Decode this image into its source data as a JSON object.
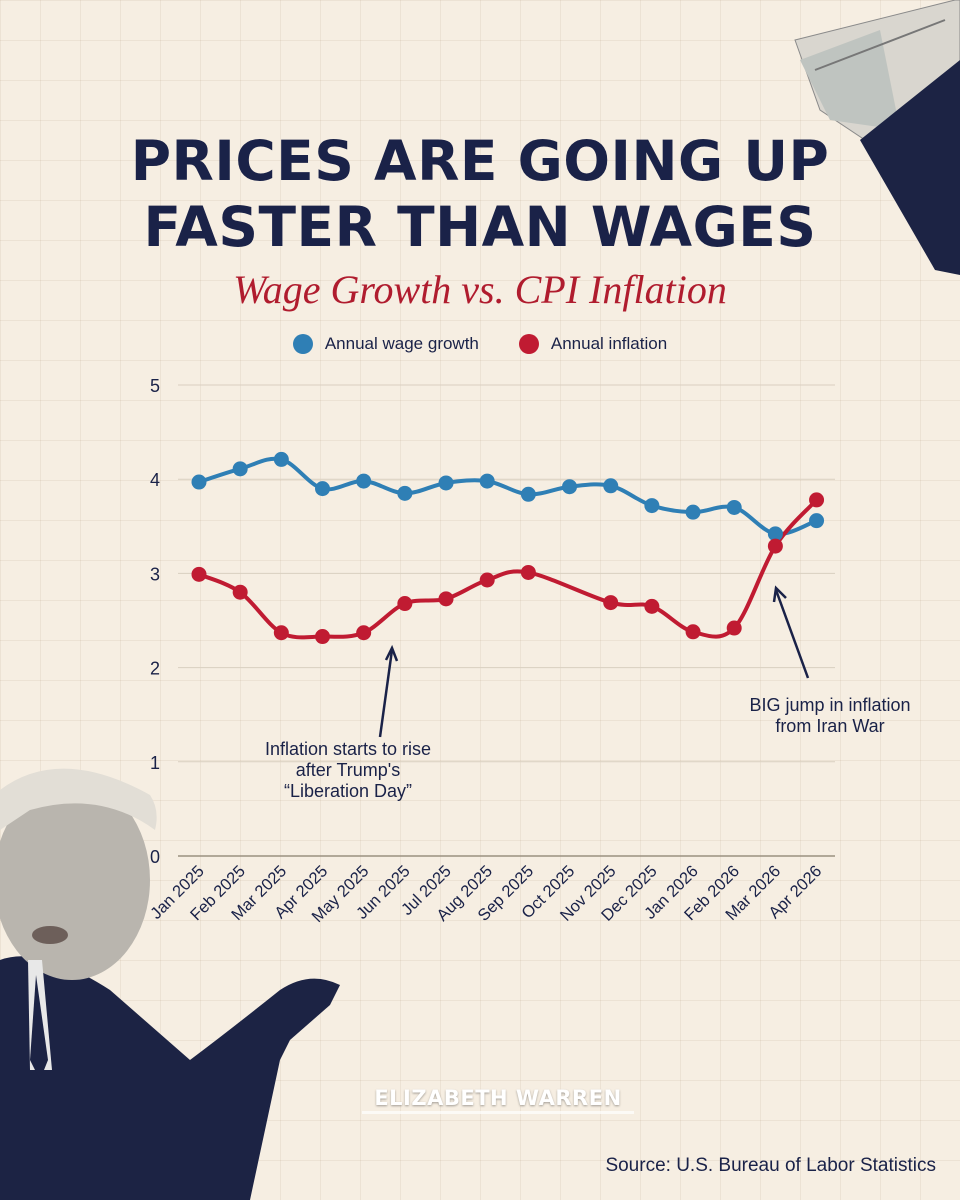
{
  "title_lines": [
    "PRICES ARE GOING UP",
    "FASTER THAN WAGES"
  ],
  "subtitle": "Wage Growth vs. CPI Inflation",
  "legend": [
    {
      "label": "Annual wage growth",
      "color": "#2f7fb5"
    },
    {
      "label": "Annual inflation",
      "color": "#c01b32"
    }
  ],
  "chart_data": {
    "type": "line",
    "title": "Wage Growth vs. CPI Inflation",
    "categories": [
      "Jan 2025",
      "Feb 2025",
      "Mar 2025",
      "Apr 2025",
      "May 2025",
      "Jun 2025",
      "Jul 2025",
      "Aug 2025",
      "Sep 2025",
      "Oct 2025",
      "Nov 2025",
      "Dec 2025",
      "Jan 2026",
      "Feb 2026",
      "Mar 2026",
      "Apr 2026"
    ],
    "series": [
      {
        "name": "Annual wage growth",
        "color": "#2f7fb5",
        "values": [
          3.97,
          4.11,
          4.21,
          3.9,
          3.98,
          3.85,
          3.96,
          3.98,
          3.84,
          3.92,
          3.93,
          3.72,
          3.65,
          3.7,
          3.42,
          3.56
        ]
      },
      {
        "name": "Annual inflation",
        "color": "#c01b32",
        "values": [
          2.99,
          2.8,
          2.37,
          2.33,
          2.37,
          2.68,
          2.73,
          2.93,
          3.01,
          null,
          2.69,
          2.65,
          2.38,
          2.42,
          3.29,
          3.78
        ]
      }
    ],
    "yticks": [
      0,
      1,
      2,
      3,
      4,
      5
    ],
    "ylim": [
      0,
      5
    ],
    "grid": true,
    "legend_position": "top-center"
  },
  "annotations": [
    {
      "lines": [
        "Inflation starts to rise",
        "after Trump's",
        "“Liberation Day”"
      ]
    },
    {
      "lines": [
        "BIG jump in inflation",
        "from Iran War"
      ]
    }
  ],
  "logo": "ELIZABETH WARREN",
  "source": "Source: U.S. Bureau of Labor Statistics"
}
